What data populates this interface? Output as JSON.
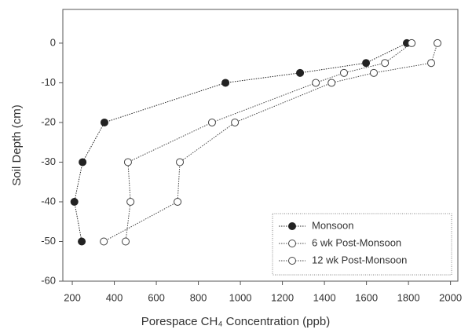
{
  "chart_data": {
    "type": "line",
    "xlabel": "Porespace CH₄ Concentration (ppb)",
    "ylabel": "Soil Depth (cm)",
    "xlim": [
      155,
      2035
    ],
    "xticks": [
      200,
      400,
      600,
      800,
      1000,
      1200,
      1400,
      1600,
      1800,
      2000
    ],
    "ylim": [
      -60,
      8.5
    ],
    "yticks": [
      0,
      -10,
      -20,
      -30,
      -40,
      -50,
      -60
    ],
    "legend": "lower right",
    "series": [
      {
        "name": "Monsoon",
        "color": "#222222",
        "filled": true,
        "x": [
          1792,
          1598,
          1284,
          929,
          353,
          249,
          210,
          245
        ],
        "values": [
          0,
          -5,
          -7.5,
          -10,
          -20,
          -30,
          -40,
          -50
        ]
      },
      {
        "name": "6 wk Post-Monsoon",
        "color": "#444444",
        "filled": false,
        "x": [
          1815,
          1688,
          1493,
          1359,
          865,
          465,
          477,
          454
        ],
        "values": [
          0,
          -5,
          -7.5,
          -10,
          -20,
          -30,
          -40,
          -50
        ]
      },
      {
        "name": "12 wk Post-Monsoon",
        "color": "#444444",
        "filled": false,
        "x": [
          1938,
          1908,
          1635,
          1434,
          974,
          712,
          701,
          350
        ],
        "values": [
          0,
          -5,
          -7.5,
          -10,
          -20,
          -30,
          -40,
          -50
        ]
      }
    ]
  }
}
